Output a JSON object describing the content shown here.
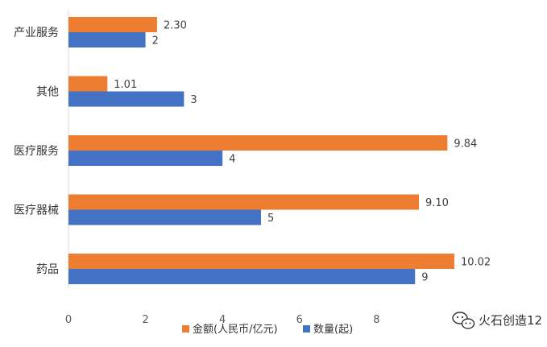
{
  "chart_data": {
    "type": "bar",
    "orientation": "horizontal",
    "categories": [
      "产业服务",
      "其他",
      "医疗服务",
      "医疗器械",
      "药品"
    ],
    "series": [
      {
        "name": "金额(人民币/亿元)",
        "color": "#ED7D31",
        "values": [
          2.3,
          1.01,
          9.84,
          9.1,
          10.02
        ],
        "labels": [
          "2.30",
          "1.01",
          "9.84",
          "9.10",
          "10.02"
        ]
      },
      {
        "name": "数量(起)",
        "color": "#4472C4",
        "values": [
          2,
          3,
          4,
          5,
          9
        ],
        "labels": [
          "2",
          "3",
          "4",
          "5",
          "9"
        ]
      }
    ],
    "xlim": [
      0,
      10
    ],
    "xticks": [
      "0",
      "2",
      "4",
      "6",
      "8"
    ],
    "grid": false,
    "legend": "bottom"
  },
  "watermark": {
    "text": "火石创造12"
  }
}
